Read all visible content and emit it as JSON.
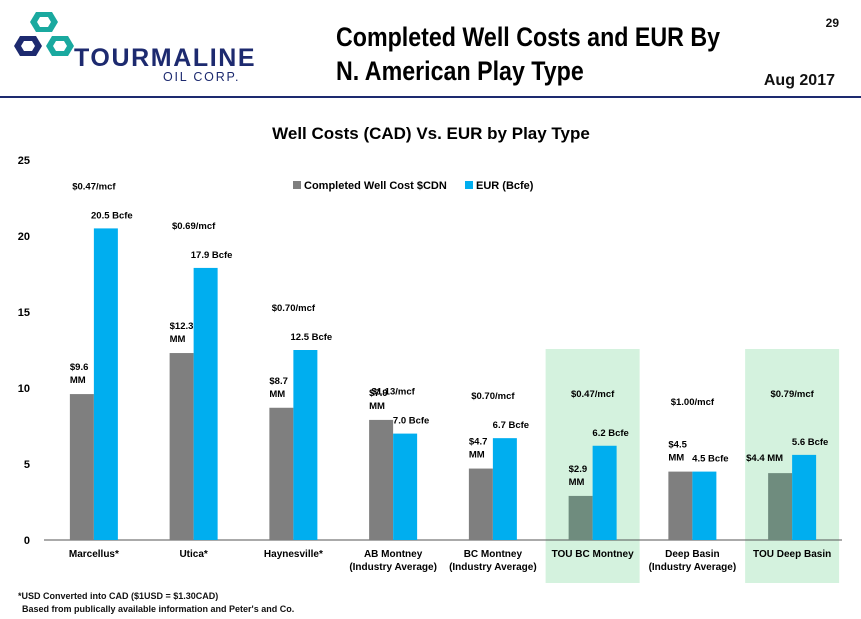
{
  "header": {
    "logo_word": "TOURMALINE",
    "logo_sub": "OIL CORP.",
    "title_line1": "Completed Well Costs and EUR By",
    "title_line2": "N. American Play Type",
    "page_number": "29",
    "date": "Aug 2017"
  },
  "colors": {
    "cost": "#7f7f7f",
    "eur": "#00aeef",
    "highlight": "#d4f2de",
    "tou_cost": "#6f8c7e",
    "brand_navy": "#1d2a6f",
    "brand_teal": "#1aa99f"
  },
  "chart_data": {
    "type": "bar",
    "title": "Well Costs (CAD) Vs. EUR by Play Type",
    "ylim": [
      0,
      25
    ],
    "yticks": [
      0,
      5,
      10,
      15,
      20,
      25
    ],
    "xlabel": "",
    "ylabel": "",
    "legend": {
      "position": "top-center"
    },
    "categories": [
      [
        "Marcellus*"
      ],
      [
        "Utica*"
      ],
      [
        "Haynesville*"
      ],
      [
        "AB Montney",
        "(Industry Average)"
      ],
      [
        "BC Montney",
        "(Industry Average)"
      ],
      [
        "TOU BC Montney"
      ],
      [
        "Deep Basin",
        "(Industry Average)"
      ],
      [
        "TOU Deep Basin"
      ]
    ],
    "highlighted": [
      5,
      7
    ],
    "series": [
      {
        "name": "Completed Well Cost $CDN",
        "values": [
          9.6,
          12.3,
          8.7,
          7.9,
          4.7,
          2.9,
          4.5,
          4.4
        ],
        "labels": [
          [
            "$9.6",
            "MM"
          ],
          [
            "$12.3",
            "MM"
          ],
          [
            "$8.7",
            "MM"
          ],
          [
            "$7.9",
            "MM"
          ],
          [
            "$4.7",
            "MM"
          ],
          [
            "$2.9",
            "MM"
          ],
          [
            "$4.5",
            "MM"
          ],
          [
            "$4.4 MM"
          ]
        ]
      },
      {
        "name": "EUR (Bcfe)",
        "values": [
          20.5,
          17.9,
          12.5,
          7.0,
          6.7,
          6.2,
          4.5,
          5.6
        ],
        "labels": [
          "20.5 Bcfe",
          "17.9 Bcfe",
          "12.5 Bcfe",
          "7.0 Bcfe",
          "6.7 Bcfe",
          "6.2 Bcfe",
          "4.5 Bcfe",
          "5.6 Bcfe"
        ]
      }
    ],
    "cost_per_mcf": [
      "$0.47/mcf",
      "$0.69/mcf",
      "$0.70/mcf",
      "$1.13/mcf",
      "$0.70/mcf",
      "$0.47/mcf",
      "$1.00/mcf",
      "$0.79/mcf"
    ]
  },
  "footnote": {
    "line1": "*USD Converted into CAD ($1USD = $1.30CAD)",
    "line2": "Based from publically available information  and Peter's and Co."
  }
}
